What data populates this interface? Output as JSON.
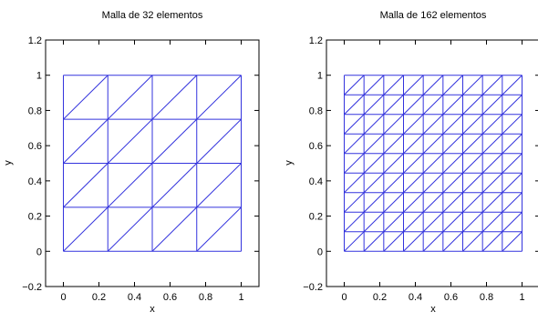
{
  "figure": {
    "mesh_color": "#3333dd",
    "plots": [
      {
        "id": "left",
        "title": "Malla de 32 elementos",
        "xlabel": "x",
        "ylabel": "y",
        "divisions": 4,
        "elements": 32,
        "xlim": [
          -0.1,
          1.1
        ],
        "ylim": [
          -0.2,
          1.2
        ],
        "xticks": [
          0,
          0.2,
          0.4,
          0.6,
          0.8,
          1
        ],
        "xtick_labels": [
          "0",
          "0.2",
          "0.4",
          "0.6",
          "0.8",
          "1"
        ],
        "yticks": [
          -0.2,
          0,
          0.2,
          0.4,
          0.6,
          0.8,
          1,
          1.2
        ],
        "ytick_labels": [
          "−0.2",
          "0",
          "0.2",
          "0.4",
          "0.6",
          "0.8",
          "1",
          "1.2"
        ]
      },
      {
        "id": "right",
        "title": "Malla de 162 elementos",
        "xlabel": "x",
        "ylabel": "y",
        "divisions": 9,
        "elements": 162,
        "xlim": [
          -0.1,
          1.1
        ],
        "ylim": [
          -0.2,
          1.2
        ],
        "xticks": [
          0,
          0.2,
          0.4,
          0.6,
          0.8,
          1
        ],
        "xtick_labels": [
          "0",
          "0.2",
          "0.4",
          "0.6",
          "0.8",
          "1"
        ],
        "yticks": [
          -0.2,
          0,
          0.2,
          0.4,
          0.6,
          0.8,
          1,
          1.2
        ],
        "ytick_labels": [
          "−0.2",
          "0",
          "0.2",
          "0.4",
          "0.6",
          "0.8",
          "1",
          "1.2"
        ]
      }
    ]
  }
}
